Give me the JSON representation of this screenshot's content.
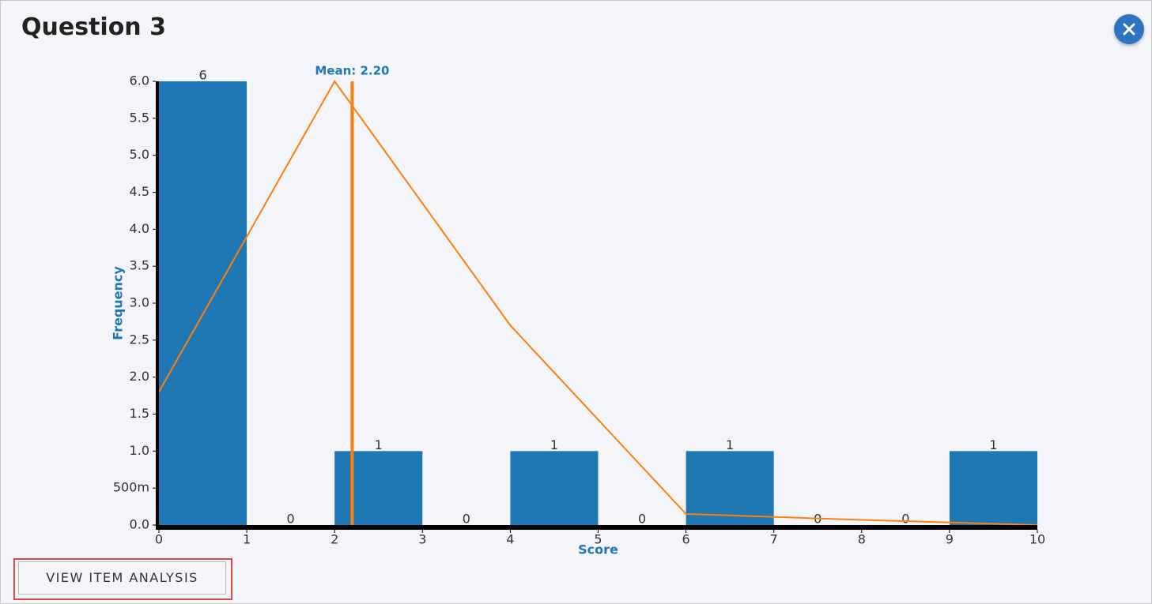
{
  "header": {
    "title": "Question 3"
  },
  "chart_data": {
    "type": "histogram",
    "bins": [
      0,
      1,
      2,
      3,
      4,
      5,
      6,
      7,
      8,
      9,
      10
    ],
    "values": [
      6,
      0,
      1,
      0,
      1,
      0,
      1,
      0,
      0,
      1
    ],
    "color": "#1f77b4",
    "xlabel": "Score",
    "ylabel": "Frequency",
    "xlim": [
      0,
      10
    ],
    "xticks": [
      0,
      1,
      2,
      3,
      4,
      5,
      6,
      7,
      8,
      9,
      10
    ],
    "ylim": [
      0,
      6
    ],
    "yticks": [
      {
        "value": 0,
        "label": "0.0"
      },
      {
        "value": 0.5,
        "label": "500m"
      },
      {
        "value": 1,
        "label": "1.0"
      },
      {
        "value": 1.5,
        "label": "1.5"
      },
      {
        "value": 2,
        "label": "2.0"
      },
      {
        "value": 2.5,
        "label": "2.5"
      },
      {
        "value": 3,
        "label": "3.0"
      },
      {
        "value": 3.5,
        "label": "3.5"
      },
      {
        "value": 4,
        "label": "4.0"
      },
      {
        "value": 4.5,
        "label": "4.5"
      },
      {
        "value": 5,
        "label": "5.0"
      },
      {
        "value": 5.5,
        "label": "5.5"
      },
      {
        "value": 6,
        "label": "6.0"
      }
    ],
    "curve": {
      "x": [
        0,
        2,
        4,
        6,
        8,
        10
      ],
      "values": [
        1.8,
        6.0,
        2.7,
        0.15,
        0.07,
        0.0
      ],
      "color": "#ff7f0e"
    },
    "mean": 2.2,
    "mean_label": "Mean: 2.20",
    "mean_color": "#ff7f0e"
  },
  "button": {
    "label": "VIEW ITEM ANALYSIS"
  }
}
